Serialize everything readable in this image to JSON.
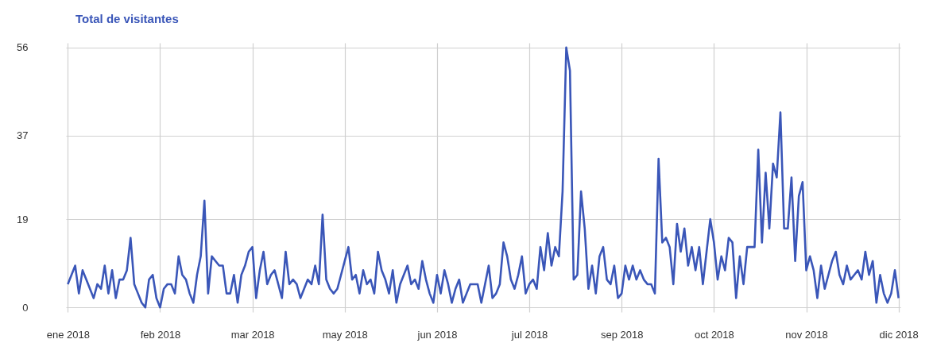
{
  "chart_data": {
    "type": "line",
    "title": "Total de visitantes",
    "color": "#3a56b8",
    "grid": true,
    "ylim": [
      -1,
      57
    ],
    "yticks": [
      0,
      19,
      37,
      56
    ],
    "categories": [
      "ene 2018",
      null,
      null,
      null,
      null,
      null,
      null,
      null,
      null,
      null,
      null,
      null,
      null,
      null,
      null,
      null,
      null,
      null,
      null,
      null,
      null,
      null,
      null,
      null,
      null,
      "feb 2018",
      null,
      null,
      null,
      null,
      null,
      null,
      null,
      null,
      null,
      null,
      null,
      null,
      null,
      null,
      null,
      null,
      null,
      null,
      null,
      null,
      null,
      null,
      null,
      null,
      "mar 2018",
      null,
      null,
      null,
      null,
      null,
      null,
      null,
      null,
      null,
      null,
      null,
      null,
      null,
      null,
      null,
      null,
      null,
      null,
      null,
      null,
      null,
      null,
      null,
      null,
      "may 2018",
      null,
      null,
      null,
      null,
      null,
      null,
      null,
      null,
      null,
      null,
      null,
      null,
      null,
      null,
      null,
      null,
      null,
      null,
      null,
      null,
      null,
      null,
      null,
      null,
      "jun 2018",
      null,
      null,
      null,
      null,
      null,
      null,
      null,
      null,
      null,
      null,
      null,
      null,
      null,
      null,
      null,
      null,
      null,
      null,
      null,
      null,
      null,
      null,
      null,
      null,
      "jul 2018",
      null,
      null,
      null,
      null,
      null,
      null,
      null,
      null,
      null,
      null,
      null,
      null,
      null,
      null,
      null,
      null,
      null,
      null,
      null,
      null,
      null,
      null,
      null,
      null,
      "sep 2018",
      null,
      null,
      null,
      null,
      null,
      null,
      null,
      null,
      null,
      null,
      null,
      null,
      null,
      null,
      null,
      null,
      null,
      null,
      null,
      null,
      null,
      null,
      null,
      null,
      "oct 2018",
      null,
      null,
      null,
      null,
      null,
      null,
      null,
      null,
      null,
      null,
      null,
      null,
      null,
      null,
      null,
      null,
      null,
      null,
      null,
      null,
      null,
      null,
      null,
      null,
      "nov 2018",
      null,
      null,
      null,
      null,
      null,
      null,
      null,
      null,
      null,
      null,
      null,
      null,
      null,
      null,
      null,
      null,
      null,
      null,
      null,
      null,
      null,
      null,
      null,
      null,
      "dic 2018"
    ],
    "values": [
      5,
      7,
      9,
      3,
      8,
      6,
      4,
      2,
      5,
      4,
      9,
      3,
      8,
      2,
      6,
      6,
      8,
      15,
      5,
      3,
      1,
      0,
      6,
      7,
      2,
      0,
      4,
      5,
      5,
      3,
      11,
      7,
      6,
      3,
      1,
      7,
      11,
      23,
      3,
      11,
      10,
      9,
      9,
      3,
      3,
      7,
      1,
      7,
      9,
      12,
      13,
      2,
      8,
      12,
      5,
      7,
      8,
      5,
      2,
      12,
      5,
      6,
      5,
      2,
      4,
      6,
      5,
      9,
      5,
      20,
      6,
      4,
      3,
      4,
      7,
      10,
      13,
      6,
      7,
      3,
      8,
      5,
      6,
      3,
      12,
      8,
      6,
      3,
      8,
      1,
      5,
      7,
      9,
      5,
      6,
      4,
      10,
      6,
      3,
      1,
      7,
      3,
      8,
      5,
      1,
      4,
      6,
      1,
      3,
      5,
      5,
      5,
      1,
      5,
      9,
      2,
      3,
      5,
      14,
      11,
      6,
      4,
      7,
      11,
      3,
      5,
      6,
      4,
      13,
      8,
      16,
      9,
      13,
      11,
      25,
      56,
      51,
      6,
      7,
      25,
      17,
      4,
      9,
      3,
      11,
      13,
      6,
      5,
      9,
      2,
      3,
      9,
      6,
      9,
      6,
      8,
      6,
      5,
      5,
      3,
      32,
      14,
      15,
      13,
      5,
      18,
      12,
      17,
      9,
      13,
      8,
      13,
      5,
      12,
      19,
      14,
      6,
      11,
      8,
      15,
      14,
      2,
      11,
      5,
      13,
      13,
      13,
      34,
      14,
      29,
      17,
      31,
      28,
      42,
      17,
      17,
      28,
      10,
      24,
      27,
      8,
      11,
      8,
      2,
      9,
      4,
      7,
      10,
      12,
      7,
      5,
      9,
      6,
      7,
      8,
      6,
      12,
      7,
      10,
      1,
      7,
      3,
      1,
      3,
      8,
      2
    ]
  }
}
